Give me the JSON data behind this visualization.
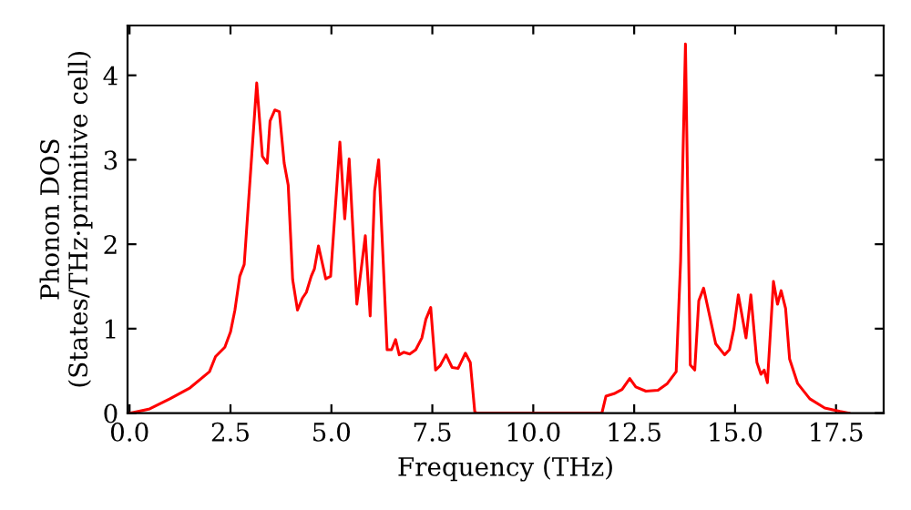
{
  "chart_data": {
    "type": "line",
    "xlabel": "Frequency (THz)",
    "ylabel": "Phonon DOS\n(States/THz·primitive cell)",
    "xlim": [
      -0.05,
      18.68
    ],
    "ylim": [
      0,
      4.59
    ],
    "xticks": [
      {
        "value": 0,
        "label": "0.0"
      },
      2.5,
      {
        "value": 5,
        "label": "5.0"
      },
      7.5,
      {
        "value": 10,
        "label": "10.0"
      },
      12.5,
      {
        "value": 15,
        "label": "15.0"
      },
      17.5
    ],
    "yticks": [
      0,
      1,
      2,
      3,
      4
    ],
    "grid": false,
    "legend": false,
    "marker": "none",
    "line_style": "solid",
    "series": [
      {
        "color": "#ff0000",
        "x": [
          0.03,
          0.5,
          1.0,
          1.5,
          1.98,
          2.13,
          2.36,
          2.5,
          2.61,
          2.73,
          2.84,
          2.96,
          3.15,
          3.29,
          3.41,
          3.48,
          3.6,
          3.71,
          3.83,
          3.93,
          4.04,
          4.16,
          4.28,
          4.38,
          4.5,
          4.58,
          4.68,
          4.86,
          4.98,
          5.21,
          5.33,
          5.44,
          5.63,
          5.84,
          5.96,
          6.07,
          6.17,
          6.38,
          6.49,
          6.59,
          6.68,
          6.79,
          6.94,
          7.09,
          7.24,
          7.34,
          7.46,
          7.58,
          7.69,
          7.84,
          7.99,
          8.14,
          8.21,
          8.32,
          8.44,
          8.55,
          8.59,
          11.7,
          11.8,
          12.0,
          12.2,
          12.39,
          12.54,
          12.79,
          13.09,
          13.32,
          13.54,
          13.65,
          13.77,
          13.89,
          14.0,
          14.1,
          14.22,
          14.37,
          14.52,
          14.74,
          14.86,
          14.97,
          15.08,
          15.27,
          15.39,
          15.54,
          15.64,
          15.72,
          15.8,
          15.95,
          16.05,
          16.14,
          16.25,
          16.35,
          16.55,
          16.85,
          17.22,
          17.6,
          17.82
        ],
        "values": [
          0,
          0.05,
          0.17,
          0.3,
          0.49,
          0.67,
          0.78,
          0.96,
          1.22,
          1.62,
          1.76,
          2.59,
          3.91,
          3.04,
          2.96,
          3.46,
          3.59,
          3.57,
          2.96,
          2.7,
          1.58,
          1.22,
          1.36,
          1.43,
          1.62,
          1.71,
          1.98,
          1.59,
          1.62,
          3.21,
          2.3,
          3.01,
          1.29,
          2.1,
          1.15,
          2.63,
          3.0,
          0.75,
          0.75,
          0.87,
          0.69,
          0.72,
          0.7,
          0.75,
          0.89,
          1.11,
          1.25,
          0.51,
          0.56,
          0.69,
          0.54,
          0.53,
          0.6,
          0.71,
          0.6,
          0.02,
          0,
          0,
          0.2,
          0.23,
          0.28,
          0.41,
          0.31,
          0.26,
          0.27,
          0.35,
          0.49,
          1.8,
          4.37,
          0.57,
          0.51,
          1.33,
          1.48,
          1.15,
          0.82,
          0.69,
          0.75,
          1.0,
          1.4,
          0.89,
          1.4,
          0.6,
          0.46,
          0.51,
          0.36,
          1.56,
          1.29,
          1.45,
          1.24,
          0.64,
          0.35,
          0.17,
          0.06,
          0.02,
          0
        ]
      }
    ]
  }
}
